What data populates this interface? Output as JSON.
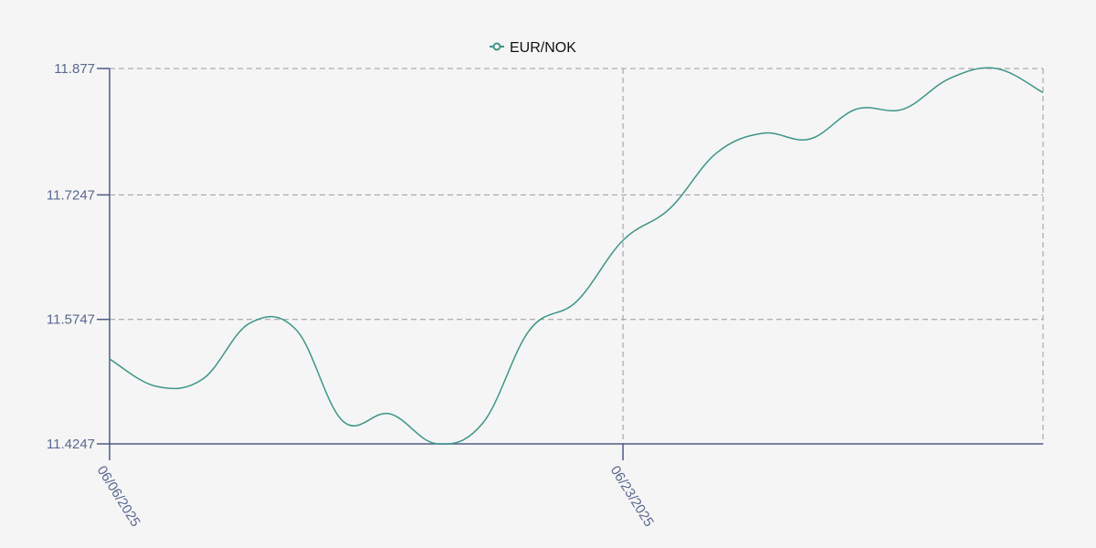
{
  "chart_data": {
    "type": "line",
    "title": "",
    "xlabel": "",
    "ylabel": "",
    "legend": {
      "position": "top-center",
      "entries": [
        "EUR/NOK"
      ]
    },
    "grid": true,
    "x": [
      "06/06/2025",
      "06/09/2025",
      "06/10/2025",
      "06/11/2025",
      "06/12/2025",
      "06/13/2025",
      "06/16/2025",
      "06/17/2025",
      "06/18/2025",
      "06/19/2025",
      "06/20/2025",
      "06/23/2025",
      "06/24/2025",
      "06/25/2025",
      "06/26/2025",
      "06/27/2025",
      "06/30/2025",
      "07/01/2025",
      "07/02/2025",
      "07/03/2025",
      "07/04/2025"
    ],
    "x_tick_labels": [
      "06/06/2025",
      "06/23/2025"
    ],
    "y_tick_labels": [
      "11.4247",
      "11.5747",
      "11.7247",
      "11.877"
    ],
    "ylim": [
      11.4247,
      11.877
    ],
    "series": [
      {
        "name": "EUR/NOK",
        "color": "#3d9588",
        "values": [
          11.527,
          11.494,
          11.503,
          11.57,
          11.562,
          11.452,
          11.461,
          11.425,
          11.45,
          11.562,
          11.596,
          11.67,
          11.708,
          11.775,
          11.799,
          11.792,
          11.828,
          11.828,
          11.865,
          11.877,
          11.848
        ]
      }
    ]
  },
  "colors": {
    "axis": "#4f5b85",
    "grid": "#9a9a9a",
    "background": "#f5f5f5"
  }
}
